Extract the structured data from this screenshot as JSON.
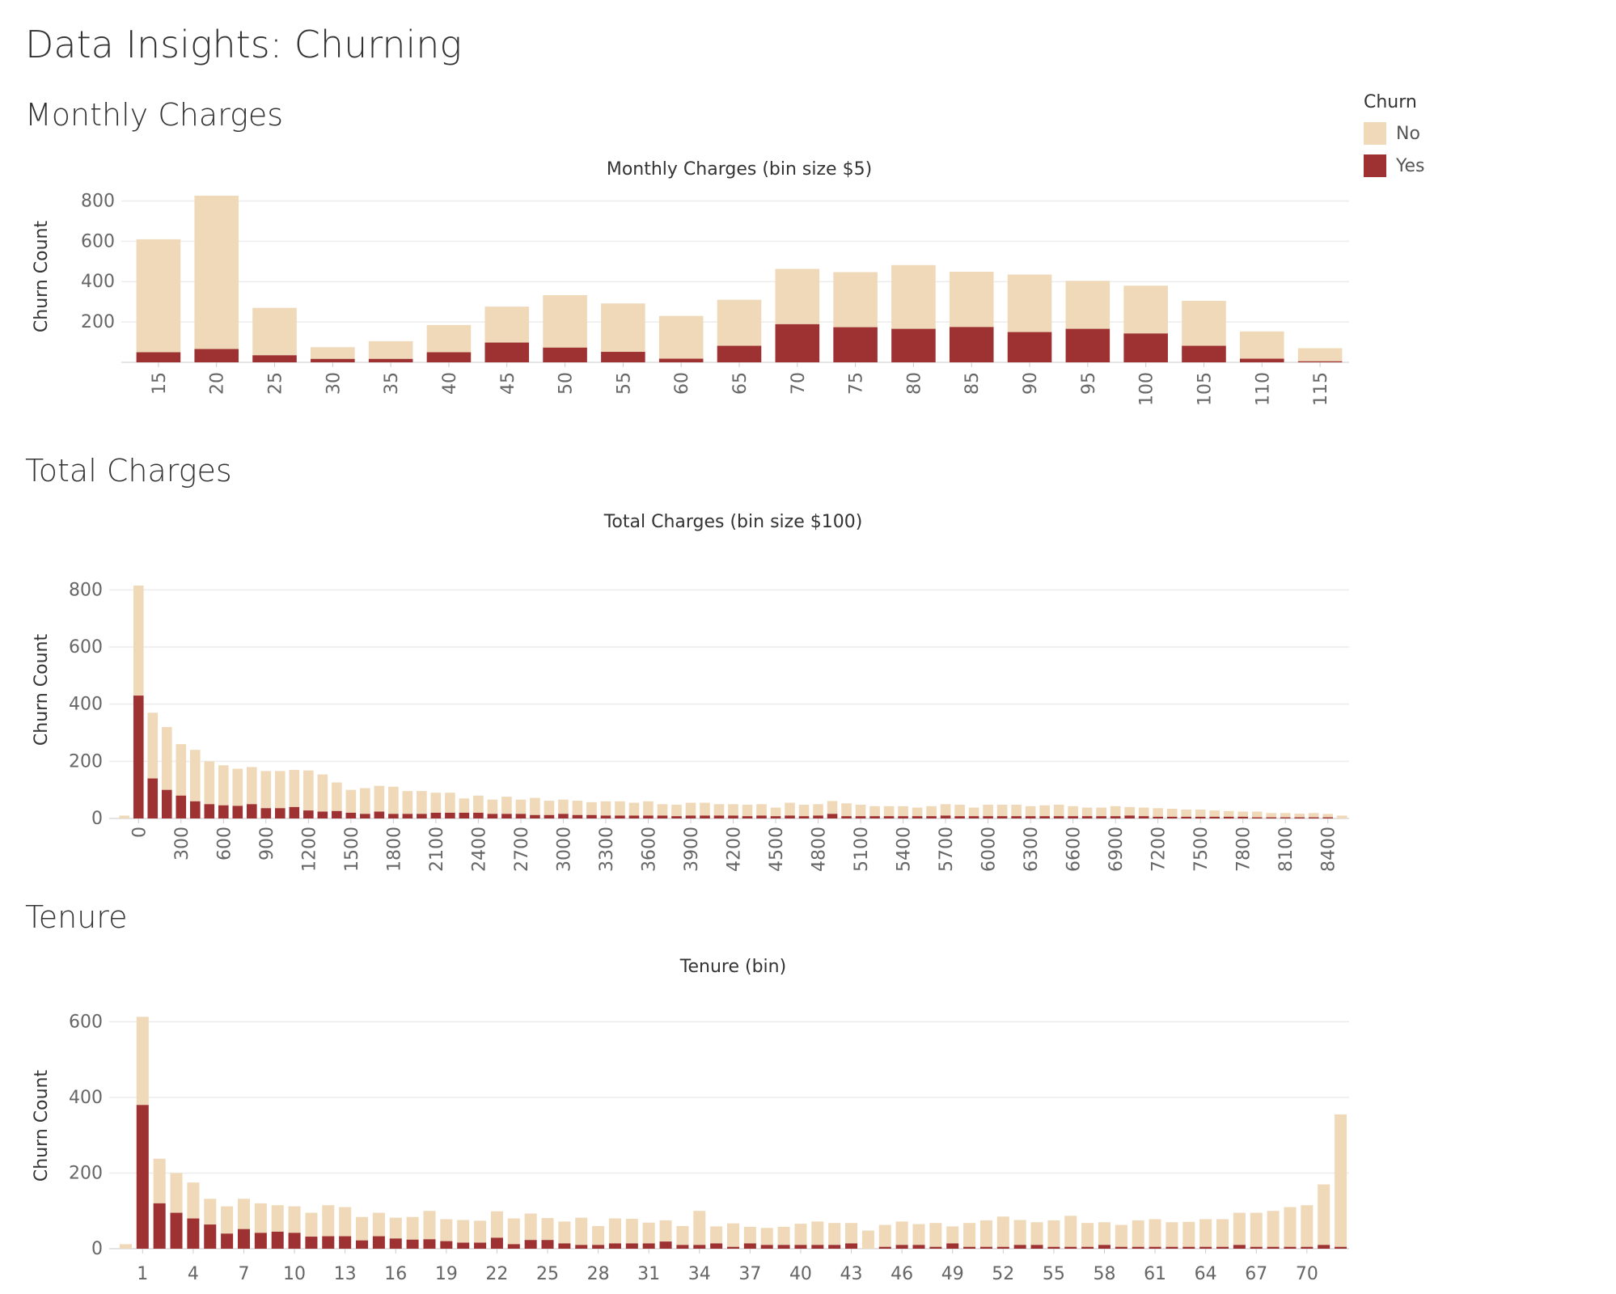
{
  "dashboard": {
    "title": "Data Insights: Churning",
    "legend": {
      "title": "Churn",
      "items": [
        {
          "label": "No",
          "color": "#EFD9B8"
        },
        {
          "label": "Yes",
          "color": "#9E3233"
        }
      ]
    },
    "sections": {
      "monthly": "Monthly Charges",
      "total": "Total Charges",
      "tenure": "Tenure"
    }
  },
  "chart_data": [
    {
      "id": "monthly",
      "type": "bar",
      "stacked": true,
      "title": "Monthly Charges (bin size $5)",
      "xlabel": "",
      "ylabel": "Churn Count",
      "ylim": [
        0,
        850
      ],
      "yticks": [
        200,
        400,
        600,
        800
      ],
      "categories": [
        "15",
        "20",
        "25",
        "30",
        "35",
        "40",
        "45",
        "50",
        "55",
        "60",
        "65",
        "70",
        "75",
        "80",
        "85",
        "90",
        "95",
        "100",
        "105",
        "110",
        "115"
      ],
      "tick_labels": [
        "15",
        "20",
        "25",
        "30",
        "35",
        "40",
        "45",
        "50",
        "55",
        "60",
        "65",
        "70",
        "75",
        "80",
        "85",
        "90",
        "95",
        "100",
        "105",
        "110",
        "115"
      ],
      "series": [
        {
          "name": "Yes",
          "values": [
            50,
            66,
            35,
            17,
            17,
            50,
            98,
            73,
            52,
            18,
            82,
            189,
            174,
            166,
            175,
            150,
            166,
            143,
            82,
            18,
            5
          ]
        },
        {
          "name": "No",
          "values": [
            560,
            760,
            235,
            58,
            88,
            135,
            178,
            260,
            240,
            212,
            228,
            274,
            273,
            316,
            274,
            285,
            238,
            237,
            223,
            135,
            65
          ]
        }
      ]
    },
    {
      "id": "total",
      "type": "bar",
      "stacked": true,
      "title": "Total Charges (bin size $100)",
      "xlabel": "",
      "ylabel": "Churn Count",
      "ylim": [
        0,
        900
      ],
      "yticks": [
        0,
        200,
        400,
        600,
        800
      ],
      "categories": [
        "-100",
        "0",
        "100",
        "200",
        "300",
        "400",
        "500",
        "600",
        "700",
        "800",
        "900",
        "1000",
        "1100",
        "1200",
        "1300",
        "1400",
        "1500",
        "1600",
        "1700",
        "1800",
        "1900",
        "2000",
        "2100",
        "2200",
        "2300",
        "2400",
        "2500",
        "2600",
        "2700",
        "2800",
        "2900",
        "3000",
        "3100",
        "3200",
        "3300",
        "3400",
        "3500",
        "3600",
        "3700",
        "3800",
        "3900",
        "4000",
        "4100",
        "4200",
        "4300",
        "4400",
        "4500",
        "4600",
        "4700",
        "4800",
        "4900",
        "5000",
        "5100",
        "5200",
        "5300",
        "5400",
        "5500",
        "5600",
        "5700",
        "5800",
        "5900",
        "6000",
        "6100",
        "6200",
        "6300",
        "6400",
        "6500",
        "6600",
        "6700",
        "6800",
        "6900",
        "7000",
        "7100",
        "7200",
        "7300",
        "7400",
        "7500",
        "7600",
        "7700",
        "7800",
        "7900",
        "8000",
        "8100",
        "8200",
        "8300",
        "8400",
        "8500"
      ],
      "tick_labels": [
        "0",
        "300",
        "600",
        "900",
        "1200",
        "1500",
        "1800",
        "2100",
        "2400",
        "2700",
        "3000",
        "3300",
        "3600",
        "3900",
        "4200",
        "4500",
        "4800",
        "5100",
        "5400",
        "5700",
        "6000",
        "6300",
        "6600",
        "6900",
        "7200",
        "7500",
        "7800",
        "8100",
        "8400"
      ],
      "series": [
        {
          "name": "Yes",
          "values": [
            0,
            430,
            140,
            100,
            80,
            60,
            50,
            46,
            44,
            50,
            36,
            36,
            40,
            28,
            24,
            26,
            20,
            16,
            24,
            16,
            16,
            16,
            20,
            20,
            20,
            20,
            16,
            16,
            16,
            12,
            12,
            16,
            12,
            12,
            10,
            10,
            10,
            10,
            10,
            8,
            10,
            10,
            10,
            10,
            8,
            10,
            8,
            10,
            8,
            10,
            16,
            8,
            8,
            8,
            8,
            8,
            8,
            8,
            10,
            8,
            8,
            8,
            8,
            8,
            8,
            8,
            8,
            8,
            8,
            8,
            8,
            10,
            8,
            6,
            6,
            6,
            6,
            6,
            6,
            6,
            4,
            4,
            4,
            4,
            4,
            4,
            0
          ]
        },
        {
          "name": "No",
          "values": [
            10,
            385,
            230,
            220,
            180,
            180,
            150,
            140,
            130,
            130,
            130,
            130,
            130,
            140,
            130,
            100,
            80,
            90,
            90,
            95,
            80,
            80,
            70,
            70,
            50,
            60,
            50,
            60,
            50,
            60,
            50,
            50,
            50,
            45,
            50,
            50,
            45,
            50,
            40,
            40,
            45,
            45,
            40,
            40,
            40,
            40,
            30,
            45,
            40,
            40,
            45,
            45,
            40,
            35,
            35,
            35,
            30,
            35,
            40,
            40,
            30,
            40,
            40,
            40,
            35,
            38,
            40,
            35,
            30,
            30,
            35,
            30,
            30,
            30,
            28,
            25,
            25,
            22,
            20,
            18,
            20,
            15,
            15,
            13,
            15,
            12,
            10
          ]
        }
      ]
    },
    {
      "id": "tenure",
      "type": "bar",
      "stacked": true,
      "title": "Tenure (bin)",
      "xlabel": "",
      "ylabel": "Churn Count",
      "ylim": [
        0,
        650
      ],
      "yticks": [
        0,
        200,
        400,
        600
      ],
      "categories": [
        "0",
        "1",
        "2",
        "3",
        "4",
        "5",
        "6",
        "7",
        "8",
        "9",
        "10",
        "11",
        "12",
        "13",
        "14",
        "15",
        "16",
        "17",
        "18",
        "19",
        "20",
        "21",
        "22",
        "23",
        "24",
        "25",
        "26",
        "27",
        "28",
        "29",
        "30",
        "31",
        "32",
        "33",
        "34",
        "35",
        "36",
        "37",
        "38",
        "39",
        "40",
        "41",
        "42",
        "43",
        "44",
        "45",
        "46",
        "47",
        "48",
        "49",
        "50",
        "51",
        "52",
        "53",
        "54",
        "55",
        "56",
        "57",
        "58",
        "59",
        "60",
        "61",
        "62",
        "63",
        "64",
        "65",
        "66",
        "67",
        "68",
        "69",
        "70",
        "71",
        "72"
      ],
      "tick_labels": [
        "1",
        "4",
        "7",
        "10",
        "13",
        "16",
        "19",
        "22",
        "25",
        "28",
        "31",
        "34",
        "37",
        "40",
        "43",
        "46",
        "49",
        "52",
        "55",
        "58",
        "61",
        "64",
        "67",
        "70"
      ],
      "series": [
        {
          "name": "Yes",
          "values": [
            0,
            380,
            120,
            95,
            80,
            64,
            40,
            52,
            42,
            45,
            42,
            32,
            33,
            33,
            22,
            33,
            27,
            24,
            25,
            20,
            16,
            16,
            29,
            12,
            23,
            23,
            14,
            10,
            10,
            14,
            14,
            14,
            19,
            10,
            10,
            14,
            5,
            14,
            10,
            10,
            10,
            10,
            10,
            14,
            0,
            5,
            10,
            10,
            5,
            14,
            5,
            5,
            5,
            10,
            10,
            5,
            5,
            5,
            10,
            5,
            5,
            5,
            5,
            5,
            5,
            5,
            10,
            5,
            5,
            5,
            5,
            10,
            5
          ]
        },
        {
          "name": "No",
          "values": [
            12,
            233,
            118,
            105,
            95,
            68,
            72,
            80,
            78,
            70,
            70,
            63,
            82,
            77,
            62,
            62,
            55,
            60,
            75,
            58,
            60,
            58,
            70,
            68,
            70,
            58,
            58,
            72,
            50,
            66,
            65,
            55,
            56,
            50,
            90,
            45,
            62,
            44,
            45,
            48,
            56,
            62,
            58,
            54,
            48,
            58,
            62,
            55,
            63,
            45,
            63,
            70,
            80,
            66,
            60,
            70,
            82,
            63,
            60,
            58,
            70,
            73,
            65,
            66,
            73,
            73,
            85,
            90,
            95,
            105,
            110,
            160,
            350
          ]
        }
      ]
    }
  ]
}
